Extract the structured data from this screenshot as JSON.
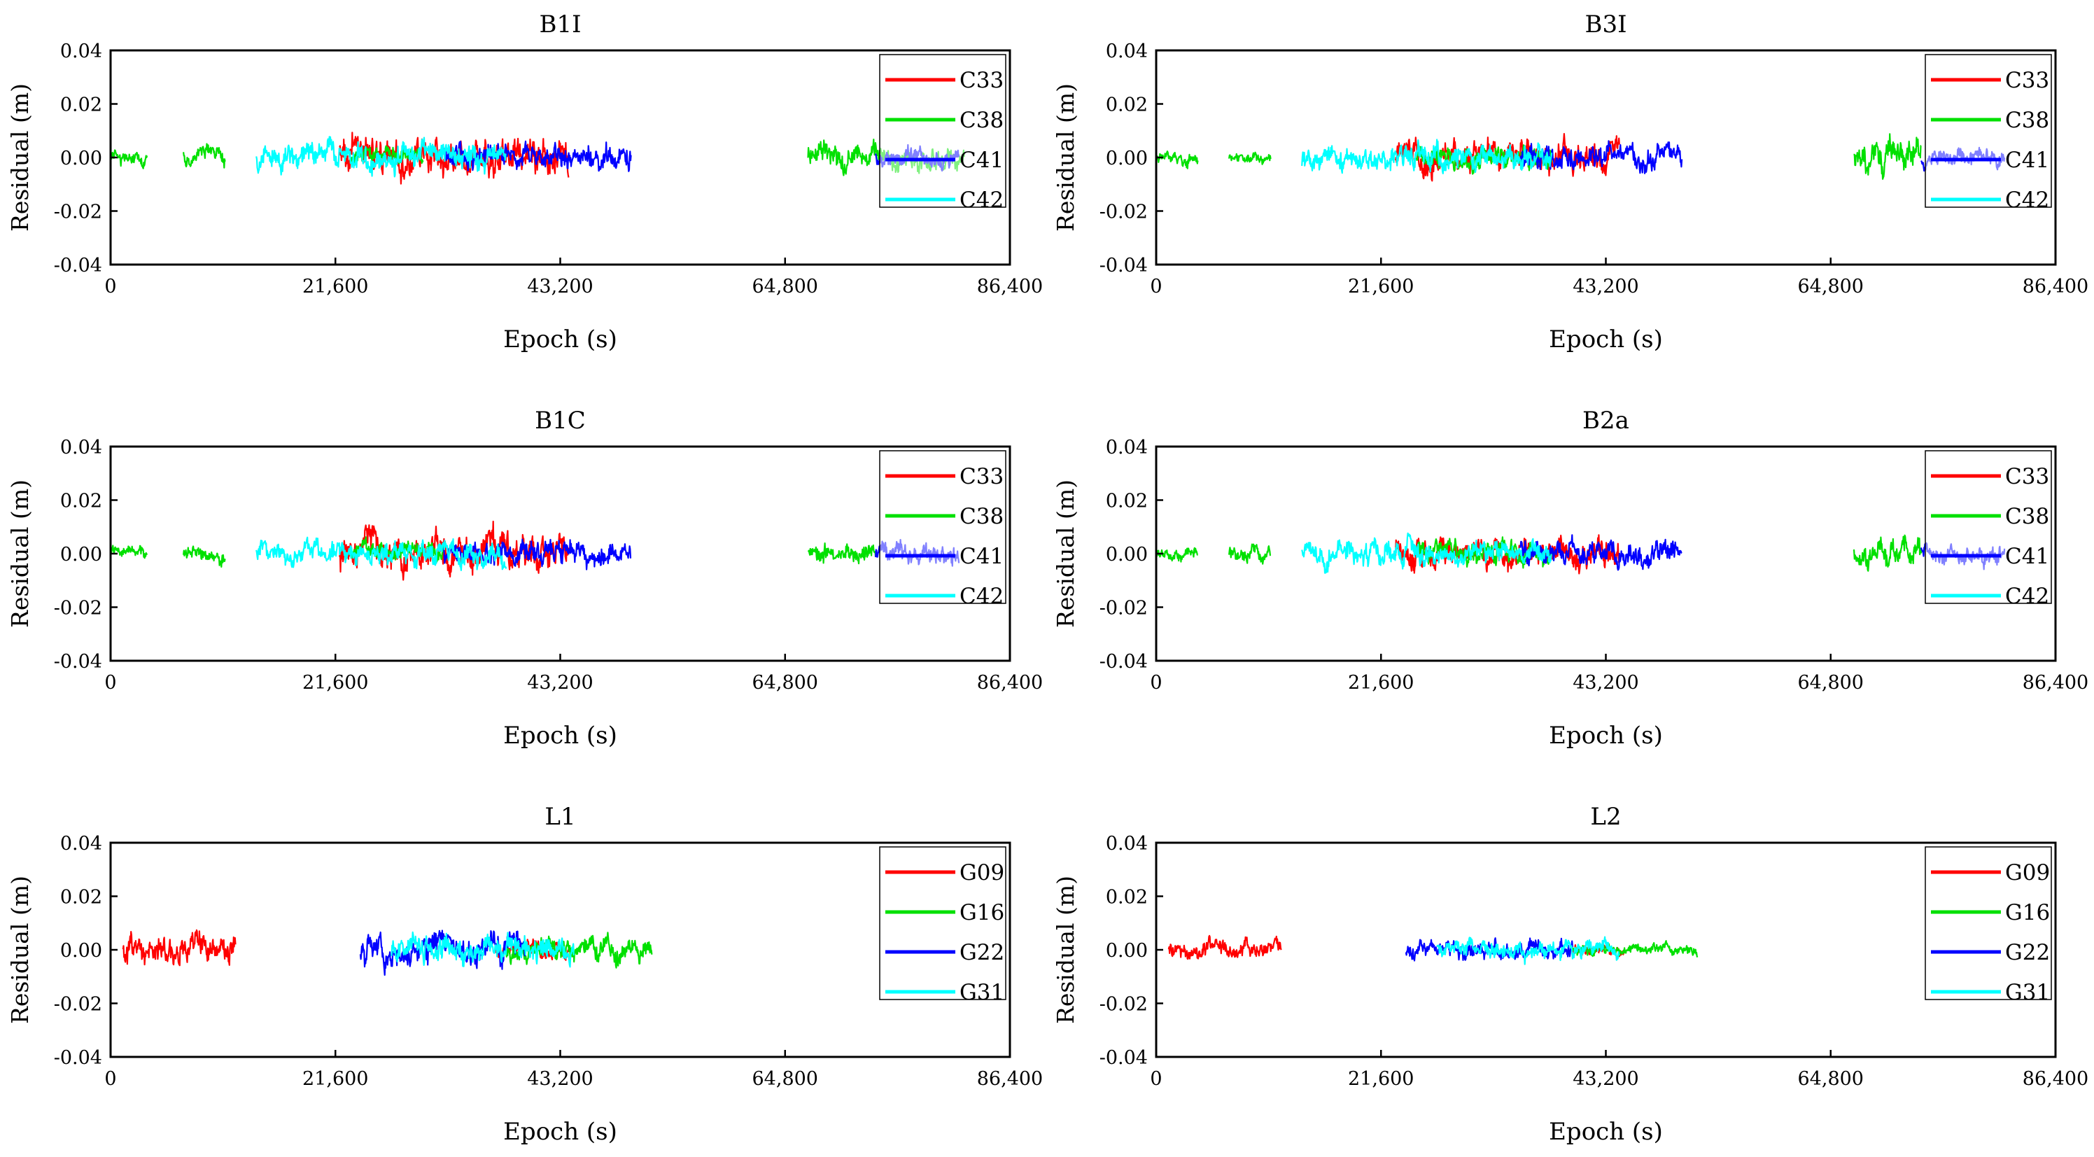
{
  "chart_data": [
    {
      "type": "line",
      "title": "B1I",
      "xlabel": "Epoch (s)",
      "ylabel": "Residual (m)",
      "xlim": [
        0,
        86400
      ],
      "ylim": [
        -0.04,
        0.04
      ],
      "x_ticks": [
        "0",
        "21,600",
        "43,200",
        "64,800",
        "86,400"
      ],
      "y_ticks": [
        "0.04",
        "0.02",
        "0.00",
        "-0.02",
        "-0.04"
      ],
      "legend_position": "top-right",
      "series": [
        {
          "name": "C33",
          "color": "#ff0000",
          "segments": [
            {
              "start": 22000,
              "end": 44000,
              "amplitude": 0.006
            }
          ]
        },
        {
          "name": "C38",
          "color": "#00e000",
          "segments": [
            {
              "start": 0,
              "end": 3500,
              "amplitude": 0.0025
            },
            {
              "start": 7000,
              "end": 11000,
              "amplitude": 0.003
            },
            {
              "start": 23000,
              "end": 30000,
              "amplitude": 0.003
            },
            {
              "start": 67000,
              "end": 82000,
              "amplitude": 0.004
            }
          ]
        },
        {
          "name": "C41",
          "color": "#0000ff",
          "segments": [
            {
              "start": 32000,
              "end": 50000,
              "amplitude": 0.004
            },
            {
              "start": 73500,
              "end": 81500,
              "amplitude": 0.003
            }
          ]
        },
        {
          "name": "C42",
          "color": "#00ffff",
          "segments": [
            {
              "start": 14000,
              "end": 38000,
              "amplitude": 0.0045
            }
          ]
        }
      ]
    },
    {
      "type": "line",
      "title": "B3I",
      "xlabel": "Epoch (s)",
      "ylabel": "Residual (m)",
      "xlim": [
        0,
        86400
      ],
      "ylim": [
        -0.04,
        0.04
      ],
      "x_ticks": [
        "0",
        "21,600",
        "43,200",
        "64,800",
        "86,400"
      ],
      "y_ticks": [
        "0.04",
        "0.02",
        "0.00",
        "-0.02",
        "-0.04"
      ],
      "legend_position": "top-right",
      "series": [
        {
          "name": "C33",
          "color": "#ff0000",
          "segments": [
            {
              "start": 23000,
              "end": 44500,
              "amplitude": 0.005
            }
          ]
        },
        {
          "name": "C38",
          "color": "#00e000",
          "segments": [
            {
              "start": 0,
              "end": 4000,
              "amplitude": 0.002
            },
            {
              "start": 7000,
              "end": 11000,
              "amplitude": 0.002
            },
            {
              "start": 25000,
              "end": 38000,
              "amplitude": 0.004
            },
            {
              "start": 67000,
              "end": 73500,
              "amplitude": 0.0055
            }
          ]
        },
        {
          "name": "C41",
          "color": "#0000ff",
          "segments": [
            {
              "start": 35000,
              "end": 50500,
              "amplitude": 0.004
            },
            {
              "start": 73500,
              "end": 81500,
              "amplitude": 0.003
            }
          ]
        },
        {
          "name": "C42",
          "color": "#00ffff",
          "segments": [
            {
              "start": 14000,
              "end": 38000,
              "amplitude": 0.004
            }
          ]
        }
      ]
    },
    {
      "type": "line",
      "title": "B1C",
      "xlabel": "Epoch (s)",
      "ylabel": "Residual (m)",
      "xlim": [
        0,
        86400
      ],
      "ylim": [
        -0.04,
        0.04
      ],
      "x_ticks": [
        "0",
        "21,600",
        "43,200",
        "64,800",
        "86,400"
      ],
      "y_ticks": [
        "0.04",
        "0.02",
        "0.00",
        "-0.02",
        "-0.04"
      ],
      "legend_position": "top-right",
      "series": [
        {
          "name": "C33",
          "color": "#ff0000",
          "segments": [
            {
              "start": 22000,
              "end": 44000,
              "amplitude": 0.006
            }
          ]
        },
        {
          "name": "C38",
          "color": "#00e000",
          "segments": [
            {
              "start": 0,
              "end": 3500,
              "amplitude": 0.002
            },
            {
              "start": 7000,
              "end": 11000,
              "amplitude": 0.0025
            },
            {
              "start": 23000,
              "end": 32000,
              "amplitude": 0.003
            },
            {
              "start": 67000,
              "end": 73500,
              "amplitude": 0.0035
            }
          ]
        },
        {
          "name": "C41",
          "color": "#0000ff",
          "segments": [
            {
              "start": 32000,
              "end": 50000,
              "amplitude": 0.004
            },
            {
              "start": 73500,
              "end": 81500,
              "amplitude": 0.0035
            }
          ]
        },
        {
          "name": "C42",
          "color": "#00ffff",
          "segments": [
            {
              "start": 14000,
              "end": 38000,
              "amplitude": 0.004
            }
          ]
        }
      ]
    },
    {
      "type": "line",
      "title": "B2a",
      "xlabel": "Epoch (s)",
      "ylabel": "Residual (m)",
      "xlim": [
        0,
        86400
      ],
      "ylim": [
        -0.04,
        0.04
      ],
      "x_ticks": [
        "0",
        "21,600",
        "43,200",
        "64,800",
        "86,400"
      ],
      "y_ticks": [
        "0.04",
        "0.02",
        "0.00",
        "-0.02",
        "-0.04"
      ],
      "legend_position": "top-right",
      "series": [
        {
          "name": "C33",
          "color": "#ff0000",
          "segments": [
            {
              "start": 23000,
              "end": 44500,
              "amplitude": 0.005
            }
          ]
        },
        {
          "name": "C38",
          "color": "#00e000",
          "segments": [
            {
              "start": 0,
              "end": 4000,
              "amplitude": 0.002
            },
            {
              "start": 7000,
              "end": 11000,
              "amplitude": 0.0025
            },
            {
              "start": 25000,
              "end": 38000,
              "amplitude": 0.004
            },
            {
              "start": 67000,
              "end": 73500,
              "amplitude": 0.0045
            }
          ]
        },
        {
          "name": "C41",
          "color": "#0000ff",
          "segments": [
            {
              "start": 35000,
              "end": 50500,
              "amplitude": 0.004
            },
            {
              "start": 73500,
              "end": 81500,
              "amplitude": 0.003
            }
          ]
        },
        {
          "name": "C42",
          "color": "#00ffff",
          "segments": [
            {
              "start": 14000,
              "end": 38000,
              "amplitude": 0.004
            }
          ]
        }
      ]
    },
    {
      "type": "line",
      "title": "L1",
      "xlabel": "Epoch (s)",
      "ylabel": "Residual (m)",
      "xlim": [
        0,
        86400
      ],
      "ylim": [
        -0.04,
        0.04
      ],
      "x_ticks": [
        "0",
        "21,600",
        "43,200",
        "64,800",
        "86,400"
      ],
      "y_ticks": [
        "0.04",
        "0.02",
        "0.00",
        "-0.02",
        "-0.04"
      ],
      "legend_position": "top-right",
      "series": [
        {
          "name": "G09",
          "color": "#ff0000",
          "segments": [
            {
              "start": 1200,
              "end": 12000,
              "amplitude": 0.005
            },
            {
              "start": 37000,
              "end": 44000,
              "amplitude": 0.003
            }
          ]
        },
        {
          "name": "G16",
          "color": "#00e000",
          "segments": [
            {
              "start": 38000,
              "end": 52000,
              "amplitude": 0.004
            }
          ]
        },
        {
          "name": "G22",
          "color": "#0000ff",
          "segments": [
            {
              "start": 24000,
              "end": 40000,
              "amplitude": 0.005
            }
          ]
        },
        {
          "name": "G31",
          "color": "#00ffff",
          "segments": [
            {
              "start": 27000,
              "end": 44500,
              "amplitude": 0.0045
            }
          ]
        }
      ]
    },
    {
      "type": "line",
      "title": "L2",
      "xlabel": "Epoch (s)",
      "ylabel": "Residual (m)",
      "xlim": [
        0,
        86400
      ],
      "ylim": [
        -0.04,
        0.04
      ],
      "x_ticks": [
        "0",
        "21,600",
        "43,200",
        "64,800",
        "86,400"
      ],
      "y_ticks": [
        "0.04",
        "0.02",
        "0.00",
        "-0.02",
        "-0.04"
      ],
      "legend_position": "top-right",
      "series": [
        {
          "name": "G09",
          "color": "#ff0000",
          "segments": [
            {
              "start": 1200,
              "end": 12000,
              "amplitude": 0.003
            },
            {
              "start": 40000,
              "end": 45000,
              "amplitude": 0.002
            }
          ]
        },
        {
          "name": "G16",
          "color": "#00e000",
          "segments": [
            {
              "start": 40000,
              "end": 52000,
              "amplitude": 0.002
            }
          ]
        },
        {
          "name": "G22",
          "color": "#0000ff",
          "segments": [
            {
              "start": 24000,
              "end": 40000,
              "amplitude": 0.003
            }
          ]
        },
        {
          "name": "G31",
          "color": "#00ffff",
          "segments": [
            {
              "start": 27000,
              "end": 44500,
              "amplitude": 0.003
            }
          ]
        }
      ]
    }
  ]
}
